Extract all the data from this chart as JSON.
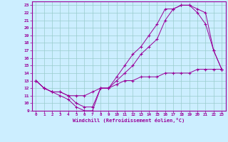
{
  "bg_color": "#cceeff",
  "line_color": "#990099",
  "grid_color": "#99cccc",
  "xlabel": "Windchill (Refroidissement éolien,°C)",
  "xlim": [
    -0.5,
    23.5
  ],
  "ylim": [
    9,
    23.5
  ],
  "xticks": [
    0,
    1,
    2,
    3,
    4,
    5,
    6,
    7,
    8,
    9,
    10,
    11,
    12,
    13,
    14,
    15,
    16,
    17,
    18,
    19,
    20,
    21,
    22,
    23
  ],
  "yticks": [
    9,
    10,
    11,
    12,
    13,
    14,
    15,
    16,
    17,
    18,
    19,
    20,
    21,
    22,
    23
  ],
  "line1_x": [
    0,
    1,
    2,
    3,
    4,
    5,
    6,
    7,
    8,
    9,
    10,
    11,
    12,
    13,
    14,
    15,
    16,
    17,
    18,
    19,
    20,
    21,
    22,
    23
  ],
  "line1_y": [
    13,
    12,
    11.5,
    11,
    10.5,
    9.5,
    9,
    9,
    12,
    12,
    13,
    14,
    15,
    16.5,
    17.5,
    18.5,
    21,
    22.5,
    23,
    23,
    22.5,
    22,
    17,
    14.5
  ],
  "line2_x": [
    0,
    1,
    2,
    3,
    4,
    5,
    6,
    7,
    8,
    9,
    10,
    11,
    12,
    13,
    14,
    15,
    16,
    17,
    18,
    19,
    20,
    21,
    22,
    23
  ],
  "line2_y": [
    13,
    12,
    11.5,
    11.5,
    11,
    10,
    9.5,
    9.5,
    12,
    12,
    13.5,
    15,
    16.5,
    17.5,
    19,
    20.5,
    22.5,
    22.5,
    23,
    23,
    22,
    20.5,
    17,
    14.5
  ],
  "line3_x": [
    0,
    1,
    2,
    3,
    4,
    5,
    6,
    7,
    8,
    9,
    10,
    11,
    12,
    13,
    14,
    15,
    16,
    17,
    18,
    19,
    20,
    21,
    22,
    23
  ],
  "line3_y": [
    13,
    12,
    11.5,
    11.5,
    11,
    11,
    11,
    11.5,
    12,
    12,
    12.5,
    13,
    13,
    13.5,
    13.5,
    13.5,
    14,
    14,
    14,
    14,
    14.5,
    14.5,
    14.5,
    14.5
  ]
}
